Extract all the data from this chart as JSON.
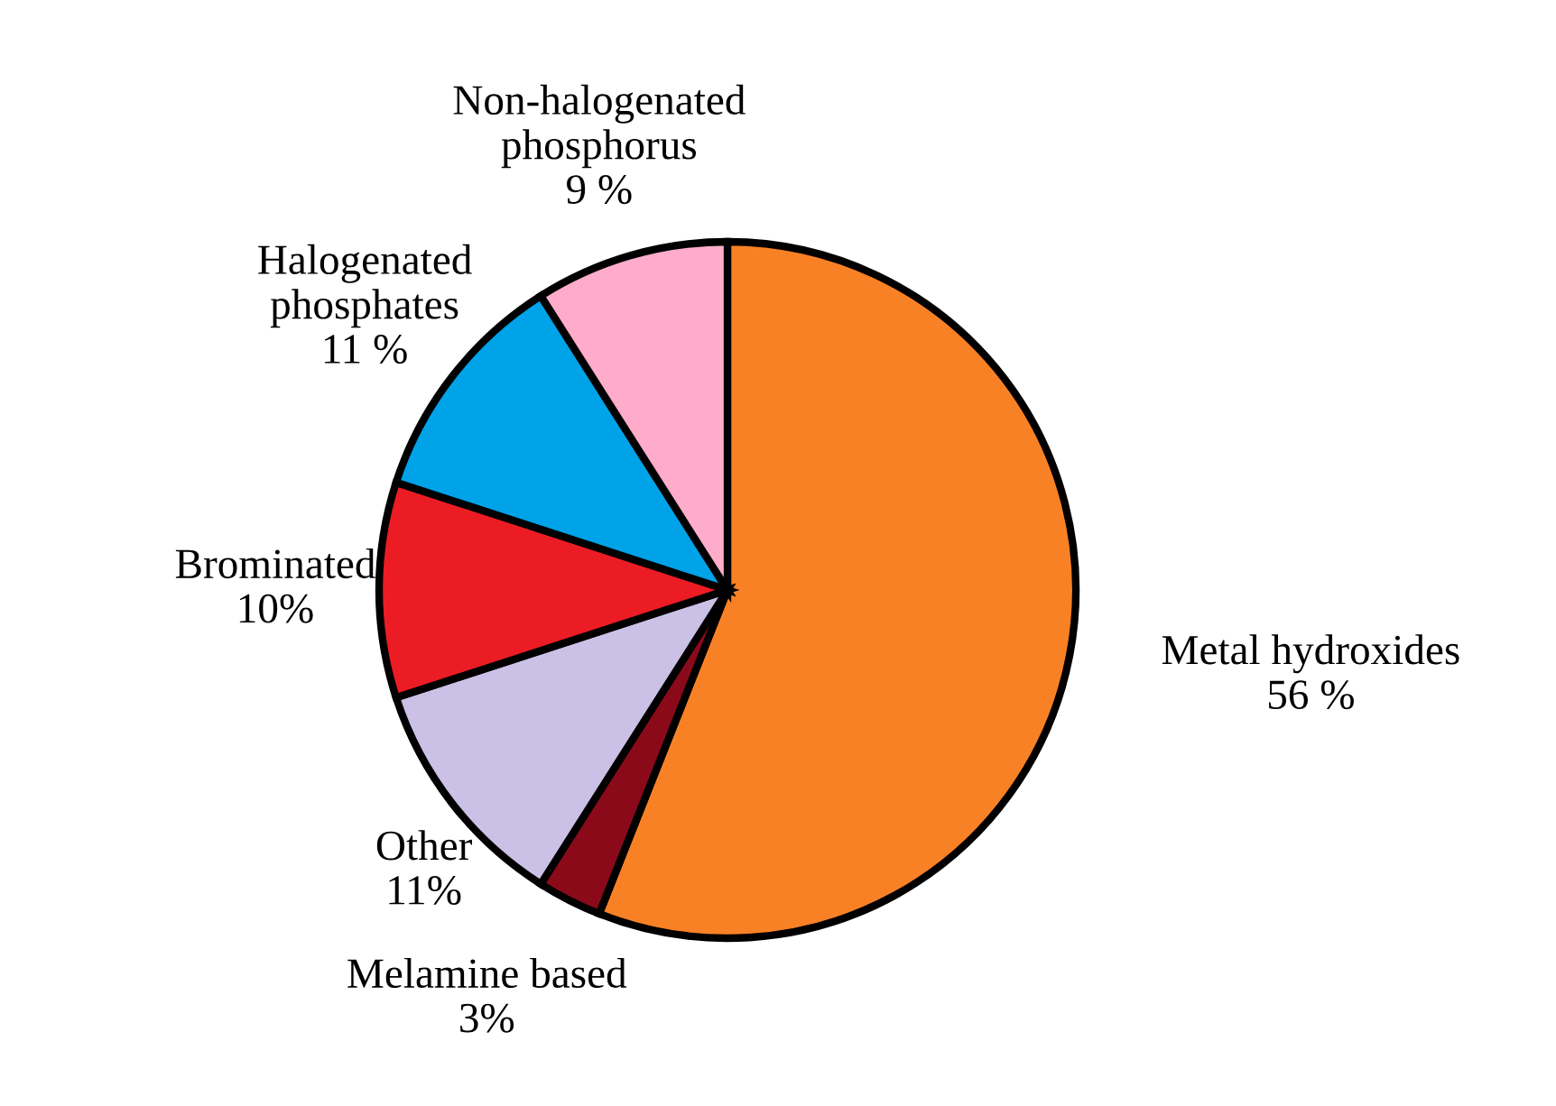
{
  "chart_data": {
    "type": "pie",
    "categories": [
      "Metal hydroxides",
      "Melamine based",
      "Other",
      "Brominated",
      "Halogenated\nphosphates",
      "Non-halogenated\nphosphorus"
    ],
    "values": [
      56,
      3,
      11,
      10,
      11,
      9
    ],
    "value_labels": [
      "56 %",
      "3%",
      "11%",
      "10%",
      "11 %",
      "9 %"
    ],
    "colors": [
      "#f98125",
      "#8b0a1a",
      "#cbc0e6",
      "#ec1c24",
      "#00a2e8",
      "#ffaccb"
    ]
  }
}
